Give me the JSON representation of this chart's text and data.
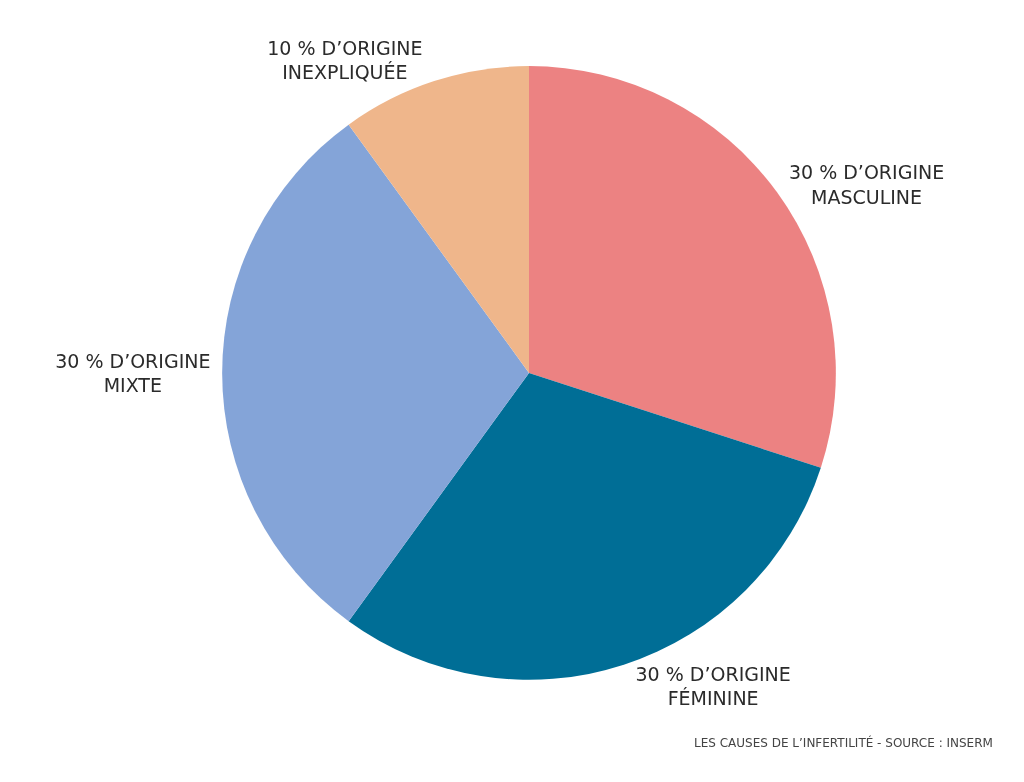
{
  "chart_data": {
    "type": "pie",
    "categories": [
      "30 % D’ORIGINE\nMASCULINE",
      "30 % D’ORIGINE\nFÉMININE",
      "30 % D’ORIGINE\nMIXTE",
      "10 % D’ORIGINE\nINEXPLIQUÉE"
    ],
    "values": [
      30,
      30,
      30,
      10
    ],
    "colors": [
      "#ec8282",
      "#006e96",
      "#84a4d8",
      "#efb68b"
    ],
    "annotations": [
      "LES CAUSES DE L’INFERTILITÉ - SOURCE : INSERM"
    ]
  }
}
